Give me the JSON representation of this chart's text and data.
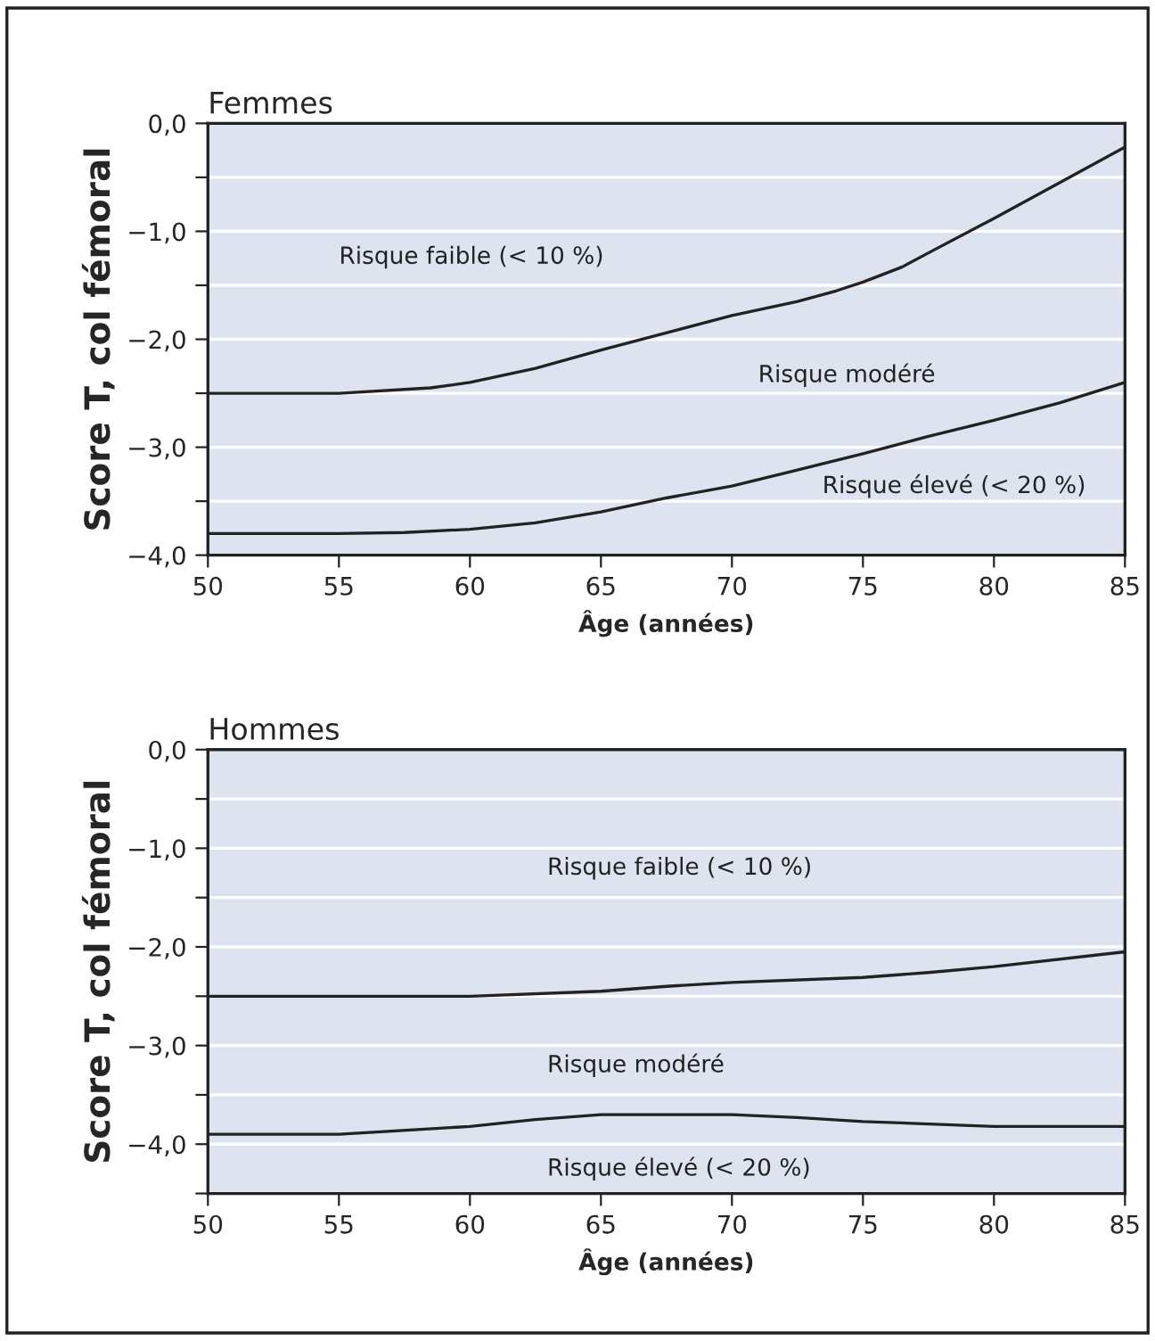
{
  "chart_data": [
    {
      "type": "line",
      "title": "Femmes",
      "xlabel": "Âge (années)",
      "ylabel": "Score T, col fémoral",
      "xlim": [
        50,
        85
      ],
      "xticks": [
        50,
        55,
        60,
        65,
        70,
        75,
        80,
        85
      ],
      "ylim": [
        -4,
        0
      ],
      "yticks": [
        {
          "value": 0,
          "label": "0,0"
        },
        {
          "value": -0.5,
          "label": null
        },
        {
          "value": -1,
          "label": "−1,0"
        },
        {
          "value": -1.5,
          "label": null
        },
        {
          "value": -2,
          "label": "−2,0"
        },
        {
          "value": -2.5,
          "label": null
        },
        {
          "value": -3,
          "label": "−3,0"
        },
        {
          "value": -3.5,
          "label": null
        },
        {
          "value": -4,
          "label": "−4,0"
        }
      ],
      "grid": "y",
      "marker": "none",
      "line_style": "solid",
      "series": [
        {
          "color": "#222222",
          "x": [
            50,
            55,
            58.5,
            60,
            62.5,
            65,
            70,
            72.5,
            74,
            75,
            76.5,
            77.5,
            80,
            85
          ],
          "values": [
            -2.5,
            -2.5,
            -2.45,
            -2.4,
            -2.27,
            -2.1,
            -1.78,
            -1.65,
            -1.55,
            -1.47,
            -1.33,
            -1.2,
            -0.88,
            -0.22
          ]
        },
        {
          "color": "#222222",
          "x": [
            50,
            55,
            57.5,
            60,
            62.5,
            65,
            67.5,
            70,
            72.5,
            75,
            77.5,
            80,
            82.5,
            85
          ],
          "values": [
            -3.8,
            -3.8,
            -3.79,
            -3.76,
            -3.7,
            -3.6,
            -3.47,
            -3.36,
            -3.21,
            -3.06,
            -2.9,
            -2.75,
            -2.59,
            -2.4
          ]
        }
      ],
      "annotations": [
        "Risque faible (< 10 %)",
        "Risque modéré",
        "Risque élevé (< 20 %)"
      ]
    },
    {
      "type": "line",
      "title": "Hommes",
      "xlabel": "Âge (années)",
      "ylabel": "Score T, col fémoral",
      "xlim": [
        50,
        85
      ],
      "xticks": [
        50,
        55,
        60,
        65,
        70,
        75,
        80,
        85
      ],
      "ylim": [
        -4.5,
        0
      ],
      "yticks": [
        {
          "value": 0,
          "label": "0,0"
        },
        {
          "value": -0.5,
          "label": null
        },
        {
          "value": -1,
          "label": "−1,0"
        },
        {
          "value": -1.5,
          "label": null
        },
        {
          "value": -2,
          "label": "−2,0"
        },
        {
          "value": -2.5,
          "label": null
        },
        {
          "value": -3,
          "label": "−3,0"
        },
        {
          "value": -3.5,
          "label": null
        },
        {
          "value": -4,
          "label": "−4,0"
        },
        {
          "value": -4.5,
          "label": null
        }
      ],
      "grid": "y",
      "marker": "none",
      "line_style": "solid",
      "series": [
        {
          "color": "#222222",
          "x": [
            50,
            55,
            60,
            65,
            67.5,
            70,
            75,
            77.5,
            80,
            85
          ],
          "values": [
            -2.5,
            -2.5,
            -2.5,
            -2.45,
            -2.4,
            -2.36,
            -2.31,
            -2.26,
            -2.2,
            -2.05
          ]
        },
        {
          "color": "#222222",
          "x": [
            50,
            55,
            60,
            62.5,
            65,
            70,
            72.5,
            75,
            80,
            85
          ],
          "values": [
            -3.9,
            -3.9,
            -3.82,
            -3.75,
            -3.7,
            -3.7,
            -3.73,
            -3.77,
            -3.82,
            -3.82
          ]
        }
      ],
      "annotations": [
        "Risque faible (< 10 %)",
        "Risque modéré",
        "Risque élevé (< 20 %)"
      ]
    }
  ]
}
